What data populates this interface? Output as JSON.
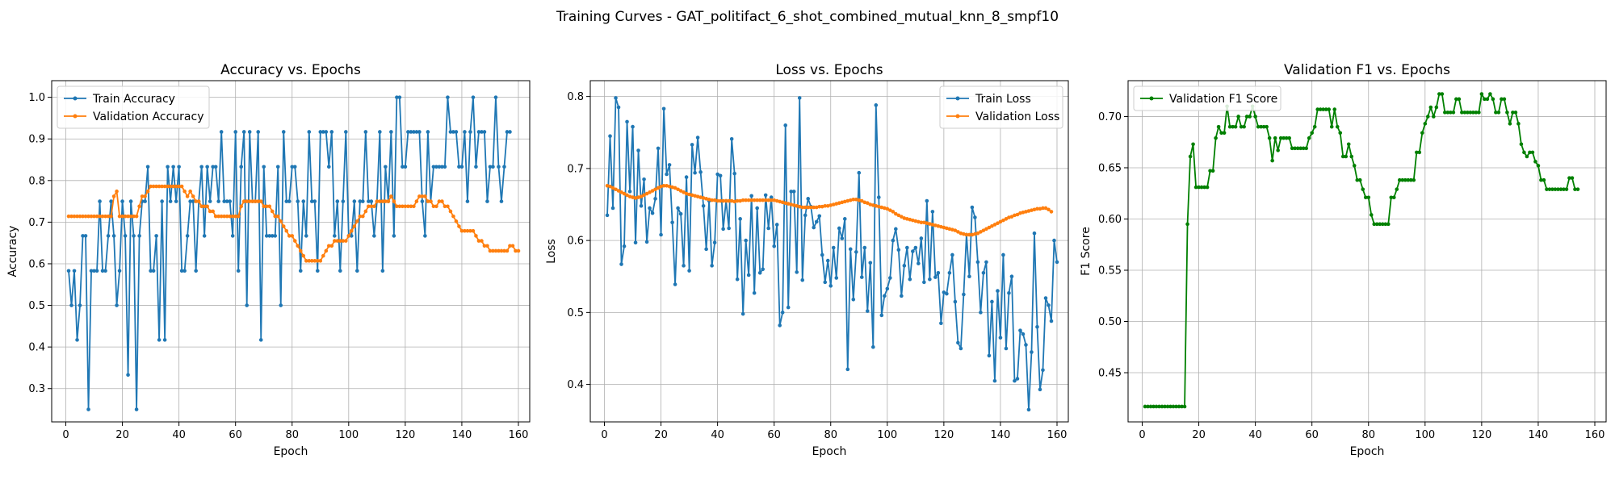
{
  "figure": {
    "suptitle": "Training Curves - GAT_politifact_6_shot_combined_mutual_knn_8_smpf10"
  },
  "chart_data": [
    {
      "type": "line",
      "title": "Accuracy vs. Epochs",
      "xlabel": "Epoch",
      "ylabel": "Accuracy",
      "xlim": [
        -5,
        164
      ],
      "ylim": [
        0.22,
        1.04
      ],
      "xticks": [
        0,
        20,
        40,
        60,
        80,
        100,
        120,
        140,
        160
      ],
      "yticks": [
        0.3,
        0.4,
        0.5,
        0.6,
        0.7,
        0.8,
        0.9,
        1.0
      ],
      "ytick_labels": [
        "0.3",
        "0.4",
        "0.5",
        "0.6",
        "0.7",
        "0.8",
        "0.9",
        "1.0"
      ],
      "grid": true,
      "legend": "upper-left",
      "series": [
        {
          "name": "Train Accuracy",
          "color": "#1f77b4",
          "x_start": 1,
          "values": [
            0.583,
            0.5,
            0.583,
            0.417,
            0.5,
            0.667,
            0.667,
            0.25,
            0.583,
            0.583,
            0.583,
            0.75,
            0.583,
            0.583,
            0.667,
            0.75,
            0.667,
            0.5,
            0.583,
            0.75,
            0.667,
            0.333,
            0.75,
            0.667,
            0.25,
            0.667,
            0.75,
            0.75,
            0.833,
            0.583,
            0.583,
            0.667,
            0.417,
            0.75,
            0.417,
            0.833,
            0.75,
            0.833,
            0.75,
            0.833,
            0.583,
            0.583,
            0.667,
            0.75,
            0.75,
            0.583,
            0.75,
            0.833,
            0.667,
            0.833,
            0.75,
            0.833,
            0.833,
            0.75,
            0.917,
            0.75,
            0.75,
            0.75,
            0.667,
            0.917,
            0.583,
            0.833,
            0.917,
            0.5,
            0.917,
            0.75,
            0.75,
            0.917,
            0.417,
            0.833,
            0.667,
            0.667,
            0.667,
            0.667,
            0.833,
            0.5,
            0.917,
            0.75,
            0.75,
            0.833,
            0.833,
            0.75,
            0.583,
            0.75,
            0.667,
            0.917,
            0.75,
            0.75,
            0.583,
            0.917,
            0.917,
            0.917,
            0.833,
            0.917,
            0.667,
            0.75,
            0.583,
            0.75,
            0.917,
            0.667,
            0.667,
            0.75,
            0.583,
            0.75,
            0.75,
            0.917,
            0.75,
            0.75,
            0.667,
            0.75,
            0.917,
            0.583,
            0.833,
            0.75,
            0.917,
            0.667,
            1.0,
            1.0,
            0.833,
            0.833,
            0.917,
            0.917,
            0.917,
            0.917,
            0.917,
            0.75,
            0.667,
            0.917,
            0.75,
            0.833,
            0.833,
            0.833,
            0.833,
            0.833,
            1.0,
            0.917,
            0.917,
            0.917,
            0.833,
            0.833,
            0.917,
            0.75,
            0.917,
            1.0,
            0.833,
            0.917,
            0.917,
            0.917,
            0.75,
            0.833,
            0.833,
            1.0,
            0.833,
            0.75,
            0.833,
            0.917,
            0.917
          ]
        },
        {
          "name": "Validation Accuracy",
          "color": "#ff7f0e",
          "x_start": 1,
          "values": [
            0.714,
            0.714,
            0.714,
            0.714,
            0.714,
            0.714,
            0.714,
            0.714,
            0.714,
            0.714,
            0.714,
            0.714,
            0.714,
            0.714,
            0.714,
            0.714,
            0.762,
            0.774,
            0.714,
            0.714,
            0.714,
            0.714,
            0.714,
            0.714,
            0.714,
            0.738,
            0.762,
            0.762,
            0.774,
            0.786,
            0.786,
            0.786,
            0.786,
            0.786,
            0.786,
            0.786,
            0.786,
            0.786,
            0.786,
            0.786,
            0.786,
            0.774,
            0.762,
            0.774,
            0.762,
            0.75,
            0.75,
            0.738,
            0.738,
            0.738,
            0.726,
            0.726,
            0.714,
            0.714,
            0.714,
            0.714,
            0.714,
            0.714,
            0.714,
            0.714,
            0.714,
            0.738,
            0.75,
            0.75,
            0.75,
            0.75,
            0.75,
            0.75,
            0.75,
            0.738,
            0.738,
            0.738,
            0.726,
            0.714,
            0.714,
            0.702,
            0.69,
            0.679,
            0.667,
            0.667,
            0.655,
            0.643,
            0.631,
            0.619,
            0.607,
            0.607,
            0.607,
            0.607,
            0.607,
            0.607,
            0.619,
            0.631,
            0.643,
            0.643,
            0.655,
            0.655,
            0.655,
            0.655,
            0.655,
            0.667,
            0.679,
            0.69,
            0.702,
            0.714,
            0.714,
            0.726,
            0.738,
            0.738,
            0.738,
            0.75,
            0.75,
            0.75,
            0.75,
            0.75,
            0.762,
            0.75,
            0.738,
            0.738,
            0.738,
            0.738,
            0.738,
            0.738,
            0.738,
            0.75,
            0.762,
            0.762,
            0.762,
            0.75,
            0.75,
            0.738,
            0.738,
            0.75,
            0.75,
            0.738,
            0.738,
            0.726,
            0.714,
            0.702,
            0.69,
            0.679,
            0.679,
            0.679,
            0.679,
            0.679,
            0.667,
            0.655,
            0.655,
            0.643,
            0.643,
            0.631,
            0.631,
            0.631,
            0.631,
            0.631,
            0.631,
            0.631,
            0.643,
            0.643,
            0.631,
            0.631
          ]
        }
      ]
    },
    {
      "type": "line",
      "title": "Loss vs. Epochs",
      "xlabel": "Epoch",
      "ylabel": "Loss",
      "xlim": [
        -5,
        164
      ],
      "ylim": [
        0.348,
        0.822
      ],
      "xticks": [
        0,
        20,
        40,
        60,
        80,
        100,
        120,
        140,
        160
      ],
      "yticks": [
        0.4,
        0.5,
        0.6,
        0.7,
        0.8
      ],
      "ytick_labels": [
        "0.4",
        "0.5",
        "0.6",
        "0.7",
        "0.8"
      ],
      "grid": true,
      "legend": "upper-right",
      "series": [
        {
          "name": "Train Loss",
          "color": "#1f77b4",
          "x_start": 1,
          "values": [
            0.635,
            0.745,
            0.645,
            0.798,
            0.785,
            0.567,
            0.592,
            0.765,
            0.668,
            0.758,
            0.597,
            0.725,
            0.648,
            0.685,
            0.598,
            0.645,
            0.638,
            0.658,
            0.728,
            0.608,
            0.783,
            0.692,
            0.705,
            0.625,
            0.539,
            0.645,
            0.637,
            0.565,
            0.688,
            0.558,
            0.733,
            0.694,
            0.743,
            0.695,
            0.648,
            0.588,
            0.655,
            0.565,
            0.597,
            0.692,
            0.69,
            0.616,
            0.655,
            0.617,
            0.741,
            0.693,
            0.546,
            0.63,
            0.498,
            0.6,
            0.552,
            0.662,
            0.527,
            0.645,
            0.555,
            0.56,
            0.663,
            0.617,
            0.66,
            0.592,
            0.622,
            0.482,
            0.5,
            0.76,
            0.507,
            0.668,
            0.668,
            0.556,
            0.798,
            0.545,
            0.635,
            0.658,
            0.647,
            0.618,
            0.626,
            0.634,
            0.58,
            0.542,
            0.572,
            0.537,
            0.59,
            0.548,
            0.617,
            0.603,
            0.63,
            0.421,
            0.588,
            0.518,
            0.584,
            0.694,
            0.549,
            0.59,
            0.502,
            0.569,
            0.452,
            0.788,
            0.66,
            0.496,
            0.523,
            0.533,
            0.548,
            0.6,
            0.616,
            0.587,
            0.523,
            0.565,
            0.59,
            0.546,
            0.585,
            0.59,
            0.568,
            0.603,
            0.542,
            0.655,
            0.546,
            0.64,
            0.549,
            0.555,
            0.485,
            0.528,
            0.526,
            0.555,
            0.58,
            0.515,
            0.458,
            0.45,
            0.525,
            0.608,
            0.55,
            0.646,
            0.632,
            0.57,
            0.5,
            0.555,
            0.57,
            0.44,
            0.515,
            0.405,
            0.53,
            0.465,
            0.58,
            0.45,
            0.527,
            0.55,
            0.405,
            0.408,
            0.475,
            0.47,
            0.455,
            0.365,
            0.445,
            0.61,
            0.48,
            0.393,
            0.42,
            0.52,
            0.51,
            0.488,
            0.6,
            0.57
          ]
        },
        {
          "name": "Validation Loss",
          "color": "#ff7f0e",
          "x_start": 1,
          "values": [
            0.676,
            0.675,
            0.673,
            0.671,
            0.669,
            0.667,
            0.665,
            0.663,
            0.661,
            0.66,
            0.659,
            0.66,
            0.661,
            0.663,
            0.665,
            0.667,
            0.669,
            0.671,
            0.673,
            0.675,
            0.676,
            0.676,
            0.675,
            0.674,
            0.673,
            0.671,
            0.669,
            0.667,
            0.665,
            0.664,
            0.663,
            0.662,
            0.661,
            0.66,
            0.659,
            0.658,
            0.657,
            0.656,
            0.656,
            0.655,
            0.655,
            0.655,
            0.655,
            0.655,
            0.655,
            0.654,
            0.655,
            0.655,
            0.656,
            0.656,
            0.656,
            0.656,
            0.656,
            0.656,
            0.656,
            0.656,
            0.656,
            0.656,
            0.656,
            0.656,
            0.655,
            0.654,
            0.653,
            0.652,
            0.651,
            0.65,
            0.649,
            0.648,
            0.647,
            0.646,
            0.646,
            0.646,
            0.646,
            0.646,
            0.646,
            0.647,
            0.647,
            0.648,
            0.648,
            0.649,
            0.65,
            0.651,
            0.652,
            0.653,
            0.654,
            0.655,
            0.656,
            0.657,
            0.657,
            0.656,
            0.655,
            0.653,
            0.652,
            0.65,
            0.649,
            0.648,
            0.647,
            0.646,
            0.645,
            0.644,
            0.642,
            0.64,
            0.637,
            0.635,
            0.633,
            0.631,
            0.63,
            0.629,
            0.628,
            0.627,
            0.626,
            0.625,
            0.625,
            0.624,
            0.623,
            0.622,
            0.621,
            0.62,
            0.619,
            0.618,
            0.617,
            0.616,
            0.615,
            0.614,
            0.612,
            0.61,
            0.609,
            0.608,
            0.608,
            0.608,
            0.609,
            0.61,
            0.612,
            0.614,
            0.616,
            0.618,
            0.62,
            0.622,
            0.624,
            0.626,
            0.628,
            0.63,
            0.632,
            0.633,
            0.635,
            0.636,
            0.638,
            0.639,
            0.64,
            0.641,
            0.642,
            0.643,
            0.644,
            0.644,
            0.645,
            0.645,
            0.643,
            0.64
          ]
        }
      ]
    },
    {
      "type": "line",
      "title": "Validation F1 vs. Epochs",
      "xlabel": "Epoch",
      "ylabel": "F1 Score",
      "xlim": [
        -5,
        164
      ],
      "ylim": [
        0.402,
        0.735
      ],
      "xticks": [
        0,
        20,
        40,
        60,
        80,
        100,
        120,
        140,
        160
      ],
      "yticks": [
        0.45,
        0.5,
        0.55,
        0.6,
        0.65,
        0.7
      ],
      "ytick_labels": [
        "0.45",
        "0.50",
        "0.55",
        "0.60",
        "0.65",
        "0.70"
      ],
      "grid": true,
      "legend": "upper-left",
      "series": [
        {
          "name": "Validation F1 Score",
          "color": "#008000",
          "x_start": 1,
          "values": [
            0.417,
            0.417,
            0.417,
            0.417,
            0.417,
            0.417,
            0.417,
            0.417,
            0.417,
            0.417,
            0.417,
            0.417,
            0.417,
            0.417,
            0.417,
            0.595,
            0.661,
            0.673,
            0.631,
            0.631,
            0.631,
            0.631,
            0.631,
            0.647,
            0.647,
            0.679,
            0.69,
            0.684,
            0.684,
            0.71,
            0.69,
            0.69,
            0.69,
            0.7,
            0.69,
            0.69,
            0.7,
            0.7,
            0.71,
            0.7,
            0.69,
            0.69,
            0.69,
            0.69,
            0.679,
            0.657,
            0.679,
            0.667,
            0.679,
            0.679,
            0.679,
            0.679,
            0.669,
            0.669,
            0.669,
            0.669,
            0.669,
            0.669,
            0.679,
            0.684,
            0.69,
            0.707,
            0.707,
            0.707,
            0.707,
            0.707,
            0.69,
            0.707,
            0.69,
            0.684,
            0.661,
            0.661,
            0.673,
            0.661,
            0.652,
            0.638,
            0.638,
            0.629,
            0.621,
            0.621,
            0.604,
            0.595,
            0.595,
            0.595,
            0.595,
            0.595,
            0.595,
            0.621,
            0.621,
            0.629,
            0.638,
            0.638,
            0.638,
            0.638,
            0.638,
            0.638,
            0.665,
            0.665,
            0.684,
            0.693,
            0.7,
            0.709,
            0.7,
            0.709,
            0.722,
            0.722,
            0.704,
            0.704,
            0.704,
            0.704,
            0.717,
            0.717,
            0.704,
            0.704,
            0.704,
            0.704,
            0.704,
            0.704,
            0.704,
            0.722,
            0.717,
            0.717,
            0.722,
            0.717,
            0.704,
            0.704,
            0.717,
            0.717,
            0.704,
            0.693,
            0.704,
            0.704,
            0.693,
            0.673,
            0.665,
            0.661,
            0.665,
            0.665,
            0.656,
            0.652,
            0.638,
            0.638,
            0.629,
            0.629,
            0.629,
            0.629,
            0.629,
            0.629,
            0.629,
            0.629,
            0.64,
            0.64,
            0.629,
            0.629
          ]
        }
      ]
    }
  ]
}
